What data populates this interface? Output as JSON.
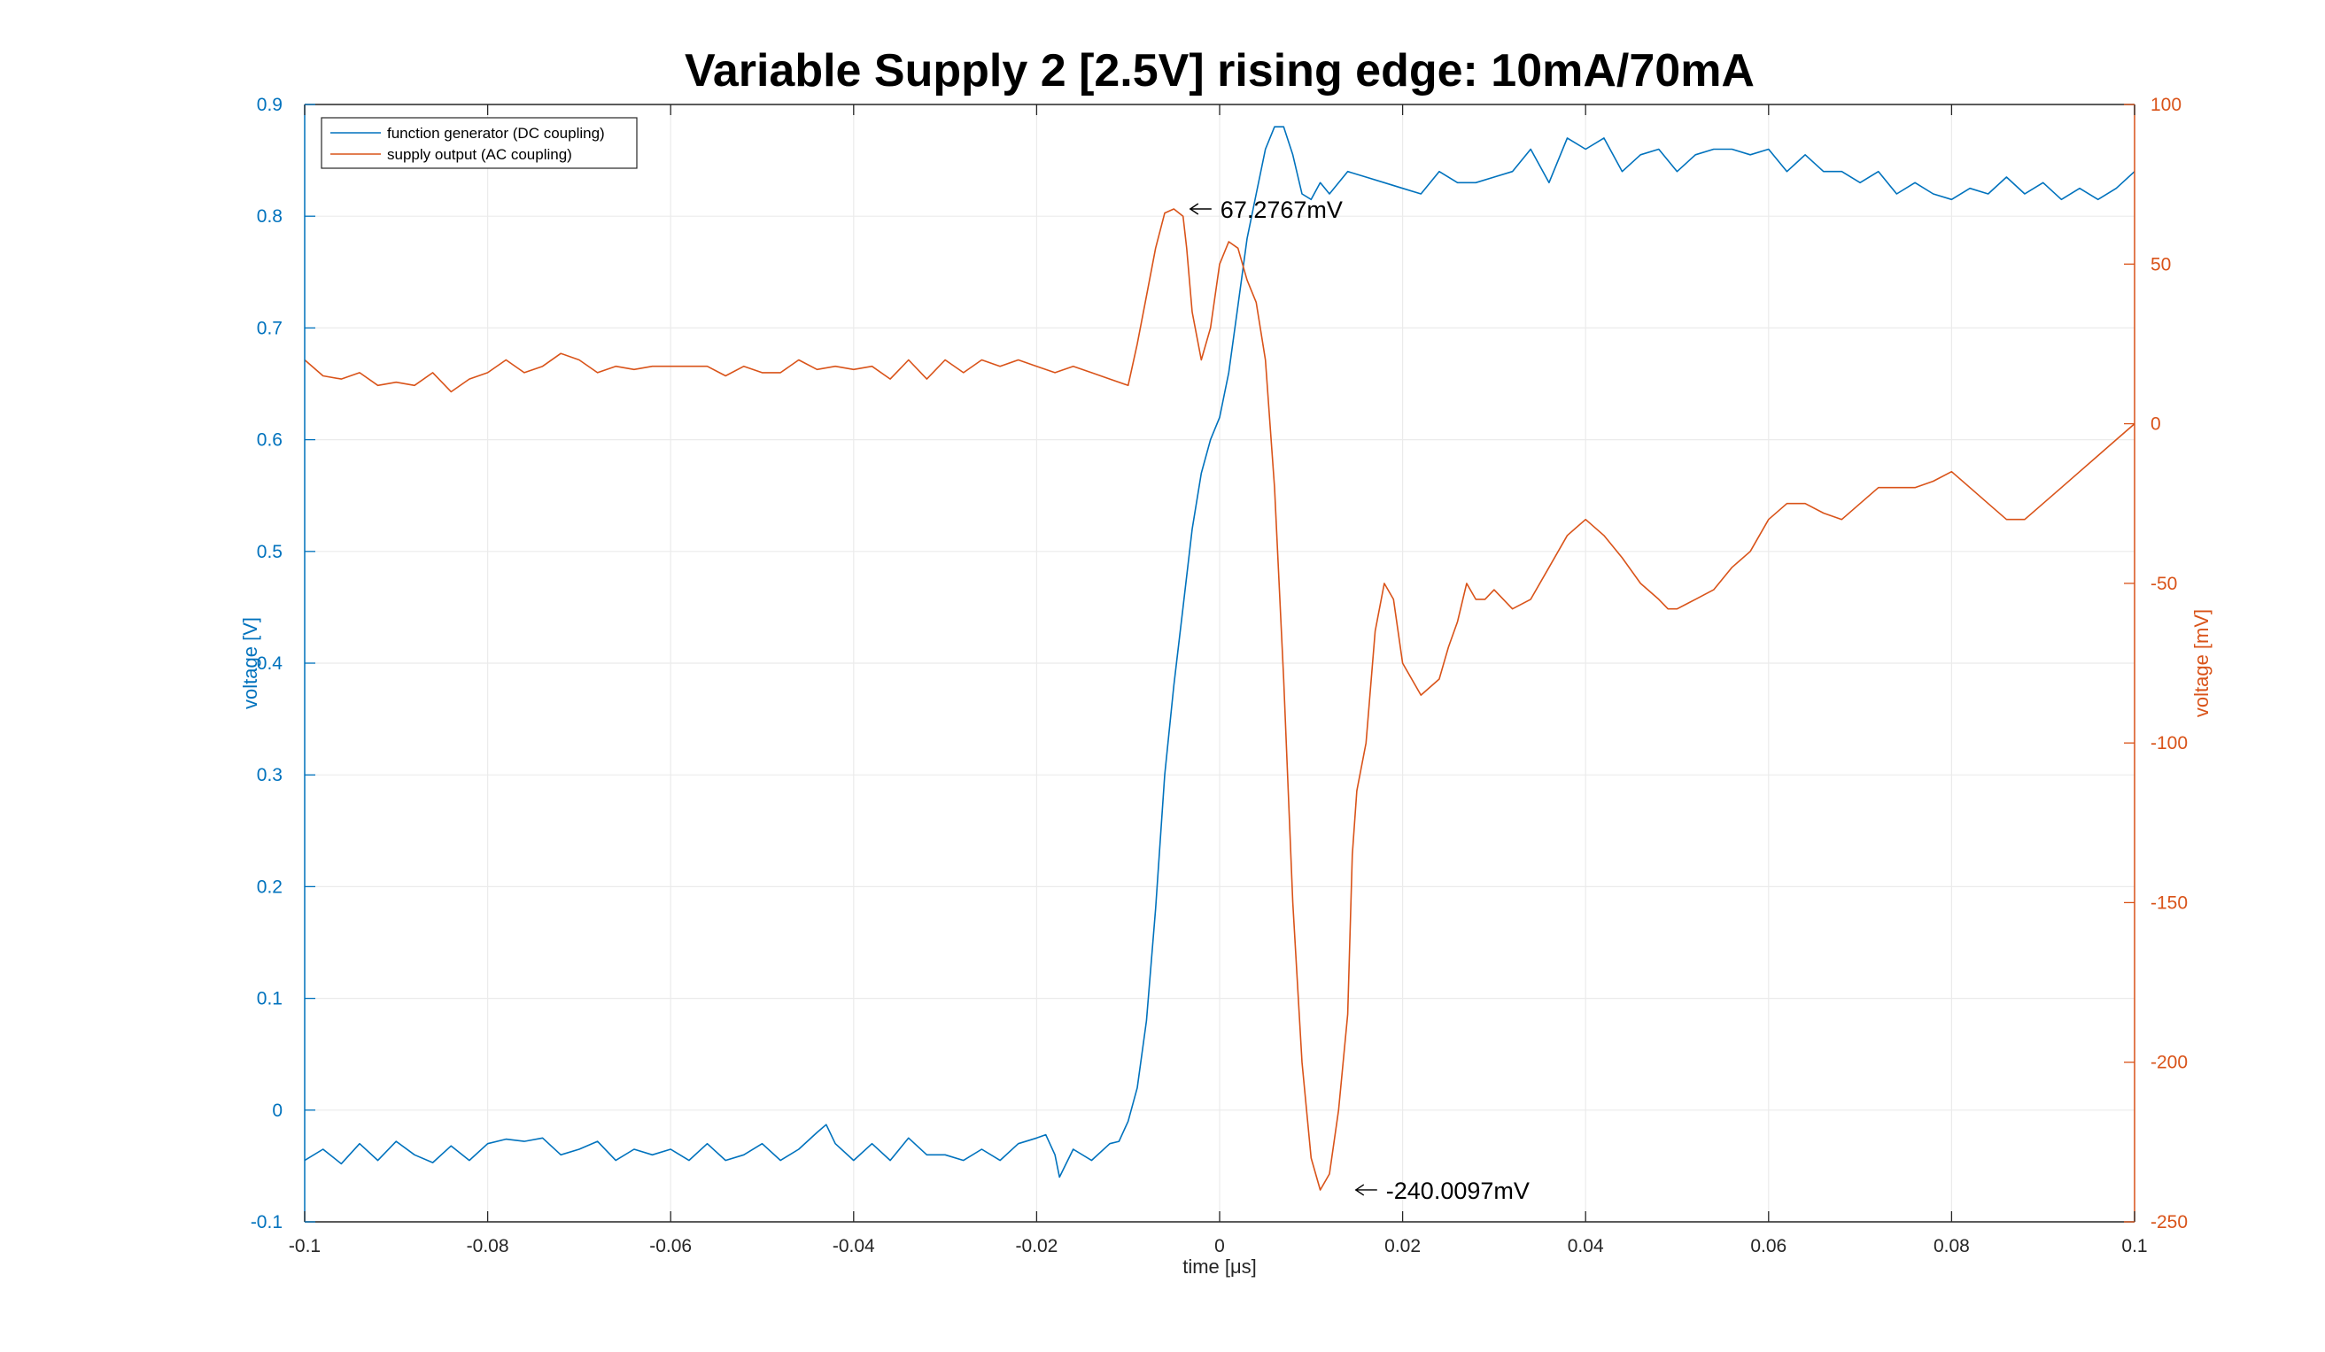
{
  "chart_data": {
    "type": "line",
    "title": "Variable Supply 2 [2.5V] rising edge: 10mA/70mA",
    "xlabel": "time [μs]",
    "ylabel_left": "voltage [V]",
    "ylabel_right": "voltage [mV]",
    "xlim": [
      -0.1,
      0.1
    ],
    "ylim_left": [
      -0.1,
      0.9
    ],
    "ylim_right": [
      -250,
      100
    ],
    "x_ticks": [
      "-0.1",
      "-0.08",
      "-0.06",
      "-0.04",
      "-0.02",
      "0",
      "0.02",
      "0.04",
      "0.06",
      "0.08",
      "0.1"
    ],
    "x_tick_values": [
      -0.1,
      -0.08,
      -0.06,
      -0.04,
      -0.02,
      0,
      0.02,
      0.04,
      0.06,
      0.08,
      0.1
    ],
    "y_ticks_left": [
      "-0.1",
      "0",
      "0.1",
      "0.2",
      "0.3",
      "0.4",
      "0.5",
      "0.6",
      "0.7",
      "0.8",
      "0.9"
    ],
    "y_tick_values_left": [
      -0.1,
      0,
      0.1,
      0.2,
      0.3,
      0.4,
      0.5,
      0.6,
      0.7,
      0.8,
      0.9
    ],
    "y_ticks_right": [
      "-250",
      "-200",
      "-150",
      "-100",
      "-50",
      "0",
      "50",
      "100"
    ],
    "y_tick_values_right": [
      -250,
      -200,
      -150,
      -100,
      -50,
      0,
      50,
      100
    ],
    "grid": true,
    "legend_position": "top-left",
    "colors": {
      "left": "#0072BD",
      "right": "#D95319"
    },
    "series": [
      {
        "name": "function generator (DC coupling)",
        "axis": "left",
        "color": "#0072BD",
        "x": [
          -0.1,
          -0.098,
          -0.096,
          -0.094,
          -0.092,
          -0.09,
          -0.088,
          -0.086,
          -0.084,
          -0.082,
          -0.08,
          -0.078,
          -0.076,
          -0.074,
          -0.072,
          -0.07,
          -0.068,
          -0.066,
          -0.064,
          -0.062,
          -0.06,
          -0.058,
          -0.056,
          -0.054,
          -0.052,
          -0.05,
          -0.048,
          -0.046,
          -0.044,
          -0.043,
          -0.042,
          -0.04,
          -0.038,
          -0.036,
          -0.034,
          -0.032,
          -0.03,
          -0.028,
          -0.026,
          -0.024,
          -0.022,
          -0.02,
          -0.019,
          -0.018,
          -0.0175,
          -0.016,
          -0.014,
          -0.012,
          -0.011,
          -0.01,
          -0.009,
          -0.008,
          -0.007,
          -0.006,
          -0.005,
          -0.004,
          -0.003,
          -0.002,
          -0.001,
          0,
          0.001,
          0.002,
          0.003,
          0.004,
          0.005,
          0.006,
          0.007,
          0.008,
          0.009,
          0.01,
          0.011,
          0.012,
          0.014,
          0.016,
          0.018,
          0.02,
          0.022,
          0.024,
          0.026,
          0.028,
          0.03,
          0.032,
          0.034,
          0.036,
          0.038,
          0.04,
          0.042,
          0.044,
          0.046,
          0.048,
          0.05,
          0.052,
          0.054,
          0.056,
          0.058,
          0.06,
          0.062,
          0.064,
          0.066,
          0.068,
          0.07,
          0.072,
          0.074,
          0.076,
          0.078,
          0.08,
          0.082,
          0.084,
          0.086,
          0.088,
          0.09,
          0.092,
          0.094,
          0.096,
          0.098,
          0.1
        ],
        "y": [
          -0.045,
          -0.035,
          -0.048,
          -0.03,
          -0.045,
          -0.028,
          -0.04,
          -0.047,
          -0.032,
          -0.045,
          -0.03,
          -0.026,
          -0.028,
          -0.025,
          -0.04,
          -0.035,
          -0.028,
          -0.045,
          -0.035,
          -0.04,
          -0.035,
          -0.045,
          -0.03,
          -0.045,
          -0.04,
          -0.03,
          -0.045,
          -0.035,
          -0.02,
          -0.013,
          -0.03,
          -0.045,
          -0.03,
          -0.045,
          -0.025,
          -0.04,
          -0.04,
          -0.045,
          -0.035,
          -0.045,
          -0.03,
          -0.025,
          -0.022,
          -0.04,
          -0.06,
          -0.035,
          -0.045,
          -0.03,
          -0.028,
          -0.01,
          0.02,
          0.08,
          0.18,
          0.3,
          0.38,
          0.45,
          0.52,
          0.57,
          0.6,
          0.62,
          0.66,
          0.72,
          0.78,
          0.82,
          0.86,
          0.88,
          0.88,
          0.855,
          0.82,
          0.815,
          0.83,
          0.82,
          0.84,
          0.835,
          0.83,
          0.825,
          0.82,
          0.84,
          0.83,
          0.83,
          0.835,
          0.84,
          0.86,
          0.83,
          0.87,
          0.86,
          0.87,
          0.84,
          0.855,
          0.86,
          0.84,
          0.855,
          0.86,
          0.86,
          0.855,
          0.86,
          0.84,
          0.855,
          0.84,
          0.84,
          0.83,
          0.84,
          0.82,
          0.83,
          0.82,
          0.815,
          0.825,
          0.82,
          0.835,
          0.82,
          0.83,
          0.815,
          0.825,
          0.815,
          0.825,
          0.84
        ]
      },
      {
        "name": "supply output (AC coupling)",
        "axis": "right",
        "color": "#D95319",
        "x": [
          -0.1,
          -0.098,
          -0.096,
          -0.094,
          -0.092,
          -0.09,
          -0.088,
          -0.086,
          -0.084,
          -0.082,
          -0.08,
          -0.078,
          -0.076,
          -0.074,
          -0.072,
          -0.07,
          -0.068,
          -0.066,
          -0.064,
          -0.062,
          -0.06,
          -0.058,
          -0.056,
          -0.054,
          -0.052,
          -0.05,
          -0.048,
          -0.046,
          -0.044,
          -0.042,
          -0.04,
          -0.038,
          -0.036,
          -0.034,
          -0.032,
          -0.03,
          -0.028,
          -0.026,
          -0.024,
          -0.022,
          -0.02,
          -0.018,
          -0.016,
          -0.014,
          -0.012,
          -0.01,
          -0.009,
          -0.008,
          -0.007,
          -0.006,
          -0.005,
          -0.004,
          -0.0036,
          -0.003,
          -0.002,
          -0.001,
          0,
          0.001,
          0.002,
          0.003,
          0.004,
          0.005,
          0.006,
          0.007,
          0.008,
          0.009,
          0.01,
          0.011,
          0.012,
          0.013,
          0.014,
          0.0145,
          0.015,
          0.016,
          0.017,
          0.018,
          0.019,
          0.02,
          0.022,
          0.024,
          0.025,
          0.026,
          0.027,
          0.028,
          0.029,
          0.03,
          0.032,
          0.034,
          0.036,
          0.038,
          0.04,
          0.042,
          0.044,
          0.046,
          0.048,
          0.049,
          0.05,
          0.052,
          0.054,
          0.056,
          0.058,
          0.06,
          0.062,
          0.064,
          0.066,
          0.068,
          0.07,
          0.072,
          0.074,
          0.076,
          0.078,
          0.08,
          0.082,
          0.084,
          0.086,
          0.088,
          0.09,
          0.092,
          0.094,
          0.096,
          0.098,
          0.1
        ],
        "y": [
          20,
          15,
          14,
          16,
          12,
          13,
          12,
          16,
          10,
          14,
          16,
          20,
          16,
          18,
          22,
          20,
          16,
          18,
          17,
          18,
          18,
          18,
          18,
          15,
          18,
          16,
          16,
          20,
          17,
          18,
          17,
          18,
          14,
          20,
          14,
          20,
          16,
          20,
          18,
          20,
          18,
          16,
          18,
          16,
          14,
          12,
          25,
          40,
          55,
          66,
          67.28,
          65,
          55,
          35,
          20,
          30,
          50,
          57,
          55,
          45,
          38,
          20,
          -20,
          -80,
          -150,
          -200,
          -230,
          -240.01,
          -235,
          -215,
          -185,
          -135,
          -115,
          -100,
          -65,
          -50,
          -55,
          -75,
          -85,
          -80,
          -70,
          -62,
          -50,
          -55,
          -55,
          -52,
          -58,
          -55,
          -45,
          -35,
          -30,
          -35,
          -42,
          -50,
          -55,
          -58,
          -58,
          -55,
          -52,
          -45,
          -40,
          -30,
          -25,
          -25,
          -28,
          -30,
          -25,
          -20,
          -20,
          -20,
          -18,
          -15,
          -20,
          -25,
          -30,
          -30,
          -25,
          -20,
          -15,
          -10,
          -5,
          0
        ]
      }
    ],
    "annotations": [
      {
        "label": "67.2767mV",
        "x": -0.0036,
        "y": 67.2767,
        "axis": "right"
      },
      {
        "label": "-240.0097mV",
        "x": 0.0145,
        "y": -240.0097,
        "axis": "right"
      }
    ]
  }
}
